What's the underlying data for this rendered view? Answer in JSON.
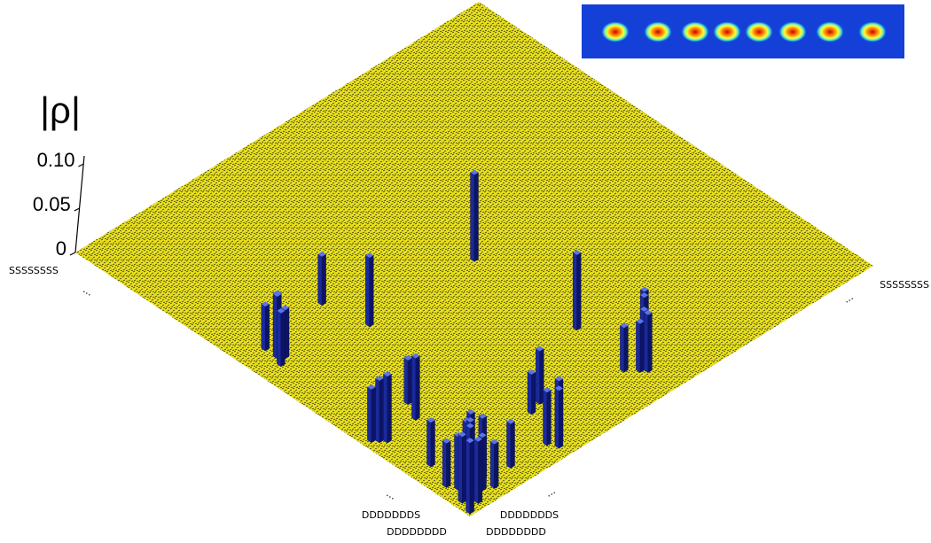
{
  "chart_data": {
    "type": "bar3d",
    "zlabel": "|ρ|",
    "zlim": [
      0,
      0.11
    ],
    "zticks": [
      0,
      0.05,
      {
        "value": 0.1,
        "label": "0.10"
      }
    ],
    "xlim": [
      0,
      1
    ],
    "ylim": [
      0,
      1
    ],
    "left_labels": [
      "SSSSSSSS",
      "...",
      "...",
      "DDDDDDDS",
      "DDDDDDDD"
    ],
    "right_labels": [
      "SSSSSSSS",
      "...",
      "...",
      "DDDDDDDS",
      "DDDDDDDD"
    ],
    "surface_color": "#e8e020",
    "bar_color": "#1a2a9c",
    "x": [
      0.5,
      0.5,
      0.76,
      0.4,
      0.43,
      0.44,
      0.45,
      0.46,
      0.47,
      0.42,
      0.88,
      0.9,
      0.91,
      0.92,
      0.93,
      0.9,
      0.74,
      0.86,
      0.7,
      0.87,
      0.74,
      0.75,
      0.73,
      0.96,
      0.97,
      0.95,
      0.9,
      0.92,
      0.94,
      0.95,
      0.97,
      0.96,
      0.98,
      0.93,
      0.96,
      0.99,
      0.91,
      0.97,
      0.85,
      0.95
    ],
    "y": [
      0.5,
      0.76,
      0.5,
      0.78,
      0.92,
      0.93,
      0.94,
      0.93,
      0.95,
      0.94,
      0.45,
      0.47,
      0.48,
      0.5,
      0.49,
      0.52,
      0.88,
      0.69,
      0.86,
      0.72,
      0.97,
      0.96,
      0.98,
      0.74,
      0.75,
      0.76,
      0.9,
      0.93,
      0.91,
      0.95,
      0.97,
      0.98,
      0.96,
      0.96,
      0.93,
      0.99,
      0.97,
      0.91,
      0.95,
      0.85
    ],
    "values": [
      0.098,
      0.078,
      0.085,
      0.055,
      0.06,
      0.065,
      0.07,
      0.055,
      0.06,
      0.05,
      0.065,
      0.07,
      0.06,
      0.055,
      0.065,
      0.05,
      0.07,
      0.06,
      0.05,
      0.045,
      0.07,
      0.075,
      0.06,
      0.07,
      0.065,
      0.06,
      0.06,
      0.065,
      0.07,
      0.08,
      0.085,
      0.075,
      0.07,
      0.06,
      0.06,
      0.08,
      0.05,
      0.05,
      0.05,
      0.05
    ]
  }
}
